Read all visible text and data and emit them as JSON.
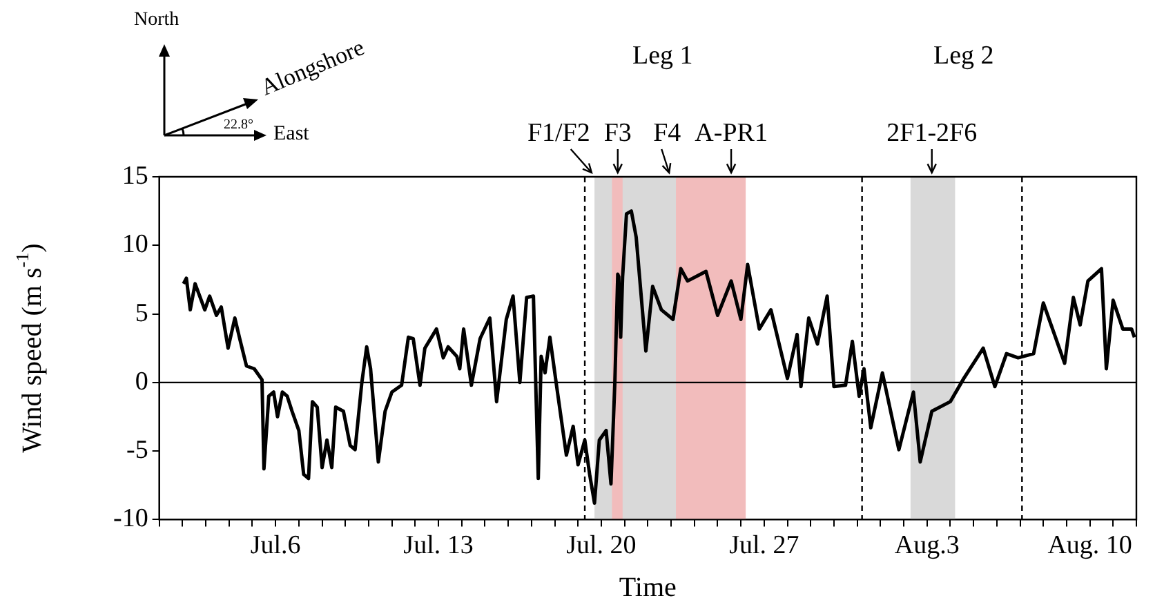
{
  "chart_data": {
    "type": "line",
    "xlabel": "Time",
    "ylabel": "Wind speed (m s$^{-1}$)",
    "x": [
      "--07-02T01:00",
      "--07-02T04:00",
      "--07-02T08:00",
      "--07-02T13:00",
      "--07-02T23:00",
      "--07-03T04:00",
      "--07-03T11:00",
      "--07-03T16:00",
      "--07-03T23:00",
      "--07-04T06:00",
      "--07-04T11:00",
      "--07-04T18:00",
      "--07-05T02:00",
      "--07-05T10:00",
      "--07-05T12:00",
      "--07-05T17:00",
      "--07-05T22:00",
      "--07-06T02:00",
      "--07-06T07:00",
      "--07-06T12:00",
      "--07-06T17:00",
      "--07-07T00:00",
      "--07-07T05:00",
      "--07-07T10:00",
      "--07-07T14:00",
      "--07-07T19:00",
      "--07-08T00:00",
      "--07-08T05:00",
      "--07-08T10:00",
      "--07-08T14:00",
      "--07-08T22:00",
      "--07-09T05:00",
      "--07-09T10:00",
      "--07-09T17:00",
      "--07-09T22:00",
      "--07-10T02:00",
      "--07-10T10:00",
      "--07-10T17:00",
      "--07-11T00:00",
      "--07-11T10:00",
      "--07-11T17:00",
      "--07-11T22:00",
      "--07-12T05:00",
      "--07-12T10:00",
      "--07-12T22:00",
      "--07-13T05:00",
      "--07-13T10:00",
      "--07-13T19:00",
      "--07-13T22:00",
      "--07-14T02:00",
      "--07-14T10:00",
      "--07-14T19:00",
      "--07-15T05:00",
      "--07-15T12:00",
      "--07-15T22:00",
      "--07-16T05:00",
      "--07-16T12:00",
      "--07-16T19:00",
      "--07-17T02:00",
      "--07-17T07:00",
      "--07-17T10:00",
      "--07-17T14:00",
      "--07-17T19:00",
      "--07-18T02:00",
      "--07-18T12:00",
      "--07-18T19:00",
      "--07-19T00:00",
      "--07-19T07:00",
      "--07-19T12:00",
      "--07-19T17:00",
      "--07-19T22:00",
      "--07-20T05:00",
      "--07-20T10:00",
      "--07-20T14:00",
      "--07-20T17:00",
      "--07-20T18:00",
      "--07-20T20:00",
      "--07-20T22:00",
      "--07-21T02:00",
      "--07-21T07:00",
      "--07-21T12:00",
      "--07-21T22:00",
      "--07-22T05:00",
      "--07-22T14:00",
      "--07-23T02:00",
      "--07-23T10:00",
      "--07-23T17:00",
      "--07-24T12:00",
      "--07-25T00:00",
      "--07-25T14:00",
      "--07-26T00:00",
      "--07-26T07:00",
      "--07-26T19:00",
      "--07-27T07:00",
      "--07-28T00:00",
      "--07-28T10:00",
      "--07-28T14:00",
      "--07-28T22:00",
      "--07-29T07:00",
      "--07-29T17:00",
      "--07-30T00:00",
      "--07-30T12:00",
      "--07-30T19:00",
      "--07-31T02:00",
      "--07-31T07:00",
      "--07-31T14:00",
      "--08-01T02:00",
      "--08-01T19:00",
      "--08-02T10:00",
      "--08-02T17:00",
      "--08-03T05:00",
      "--08-04T00:00",
      "--08-04T14:00",
      "--08-05T10:00",
      "--08-05T22:00",
      "--08-06T10:00",
      "--08-06T22:00",
      "--08-07T14:00",
      "--08-08T00:00",
      "--08-08T22:00",
      "--08-09T07:00",
      "--08-09T14:00",
      "--08-09T22:00",
      "--08-10T12:00",
      "--08-10T17:00",
      "--08-11T00:00",
      "--08-11T10:00",
      "--08-11T19:00",
      "--08-11T22:00"
    ],
    "series": [
      {
        "color": "#000000",
        "values": [
          7.2,
          7.6,
          5.3,
          7.2,
          5.3,
          6.3,
          4.9,
          5.5,
          2.5,
          4.7,
          3.2,
          1.2,
          1.0,
          0.2,
          -6.3,
          -1.0,
          -0.7,
          -2.5,
          -0.7,
          -1.0,
          -2.1,
          -3.5,
          -6.7,
          -7.0,
          -1.4,
          -1.8,
          -6.2,
          -4.2,
          -6.2,
          -1.8,
          -2.1,
          -4.6,
          -4.9,
          0,
          2.6,
          1.0,
          -5.8,
          -2.1,
          -0.7,
          -0.2,
          3.3,
          3.2,
          -0.2,
          2.5,
          3.9,
          1.8,
          2.6,
          1.9,
          1.0,
          3.9,
          -0.2,
          3.2,
          4.7,
          -1.4,
          4.6,
          6.3,
          0,
          6.2,
          6.3,
          -7.0,
          1.9,
          0.7,
          3.3,
          -0.3,
          -5.3,
          -3.2,
          -6.0,
          -4.2,
          -6.7,
          -8.8,
          -4.2,
          -3.5,
          -7.4,
          0,
          7.9,
          7.7,
          3.3,
          7.7,
          12.3,
          12.5,
          10.6,
          2.3,
          7.0,
          5.3,
          4.6,
          8.3,
          7.4,
          8.1,
          4.9,
          7.4,
          4.6,
          8.6,
          3.9,
          5.3,
          0.3,
          3.5,
          -0.3,
          4.7,
          2.8,
          6.3,
          -0.3,
          -0.2,
          3.0,
          -1.0,
          1.0,
          -3.3,
          0.7,
          -4.9,
          -0.7,
          -5.8,
          -2.1,
          -1.4,
          0.3,
          2.5,
          -0.3,
          2.1,
          1.8,
          2.1,
          5.8,
          1.4,
          6.2,
          4.2,
          7.4,
          8.3,
          1.0,
          6.0,
          3.9,
          3.9,
          3.3
        ]
      }
    ],
    "xlim": [
      "--07-01",
      "--08-12"
    ],
    "xticks": [
      {
        "value": "--07-01",
        "label": null
      },
      {
        "value": "--07-02",
        "label": null
      },
      {
        "value": "--07-03",
        "label": null
      },
      {
        "value": "--07-04",
        "label": null
      },
      {
        "value": "--07-05",
        "label": null
      },
      {
        "value": "--07-06",
        "label": "Jul.6"
      },
      {
        "value": "--07-07",
        "label": null
      },
      {
        "value": "--07-08",
        "label": null
      },
      {
        "value": "--07-09",
        "label": null
      },
      {
        "value": "--07-10",
        "label": null
      },
      {
        "value": "--07-11",
        "label": null
      },
      {
        "value": "--07-12",
        "label": null
      },
      {
        "value": "--07-13",
        "label": "Jul. 13"
      },
      {
        "value": "--07-14",
        "label": null
      },
      {
        "value": "--07-15",
        "label": null
      },
      {
        "value": "--07-16",
        "label": null
      },
      {
        "value": "--07-17",
        "label": null
      },
      {
        "value": "--07-18",
        "label": null
      },
      {
        "value": "--07-19",
        "label": null
      },
      {
        "value": "--07-20",
        "label": "Jul. 20"
      },
      {
        "value": "--07-21",
        "label": null
      },
      {
        "value": "--07-22",
        "label": null
      },
      {
        "value": "--07-23",
        "label": null
      },
      {
        "value": "--07-24",
        "label": null
      },
      {
        "value": "--07-25",
        "label": null
      },
      {
        "value": "--07-26",
        "label": null
      },
      {
        "value": "--07-27",
        "label": "Jul. 27"
      },
      {
        "value": "--07-28",
        "label": null
      },
      {
        "value": "--07-29",
        "label": null
      },
      {
        "value": "--07-30",
        "label": null
      },
      {
        "value": "--07-31",
        "label": null
      },
      {
        "value": "--08-01",
        "label": null
      },
      {
        "value": "--08-02",
        "label": null
      },
      {
        "value": "--08-03",
        "label": "Aug.3"
      },
      {
        "value": "--08-04",
        "label": null
      },
      {
        "value": "--08-05",
        "label": null
      },
      {
        "value": "--08-06",
        "label": null
      },
      {
        "value": "--08-07",
        "label": null
      },
      {
        "value": "--08-08",
        "label": null
      },
      {
        "value": "--08-09",
        "label": null
      },
      {
        "value": "--08-10",
        "label": "Aug. 10"
      },
      {
        "value": "--08-11",
        "label": null
      },
      {
        "value": "--08-12",
        "label": null
      }
    ],
    "ylim": [
      -10,
      15
    ],
    "yticks": [
      -10,
      -5,
      0,
      5,
      10,
      15
    ],
    "grid": false,
    "legend": false,
    "marker": "none",
    "line_style": "solid",
    "bands": [
      {
        "axis": "x",
        "from": "--07-19T17:00",
        "to": "--07-23T05:00",
        "color": "#d9d9d9"
      },
      {
        "axis": "x",
        "from": "--07-20T11:00",
        "to": "--07-20T22:00",
        "color": "#f2bcbc"
      },
      {
        "axis": "x",
        "from": "--07-23T05:00",
        "to": "--07-26T05:00",
        "color": "#f2bcbc"
      },
      {
        "axis": "x",
        "from": "--08-02T07:00",
        "to": "--08-04T05:00",
        "color": "#d9d9d9"
      }
    ],
    "ref_lines": [
      {
        "axis": "y",
        "value": 0,
        "line_style": "solid",
        "color": "#000000"
      },
      {
        "axis": "x",
        "value": "--07-19T07:00",
        "line_style": "dashed",
        "color": "#000000"
      },
      {
        "axis": "x",
        "value": "--07-31T05:00",
        "line_style": "dashed",
        "color": "#000000"
      },
      {
        "axis": "x",
        "value": "--08-07T02:00",
        "line_style": "dashed",
        "color": "#000000"
      }
    ],
    "annotations": [
      "Leg 1",
      "Leg 2",
      {
        "text": "F1/F2",
        "x": "--07-19T14:00",
        "y": 15
      },
      {
        "text": "F3",
        "x": "--07-20T17:00",
        "y": 15
      },
      {
        "text": "F4",
        "x": "--07-22T22:00",
        "y": 15
      },
      {
        "text": "A-PR1",
        "x": "--07-25T14:00",
        "y": 15
      },
      {
        "text": "2F1-2F6",
        "x": "--08-03T05:00",
        "y": 15
      },
      "North",
      "Alongshore",
      "East",
      "22.8°"
    ]
  }
}
